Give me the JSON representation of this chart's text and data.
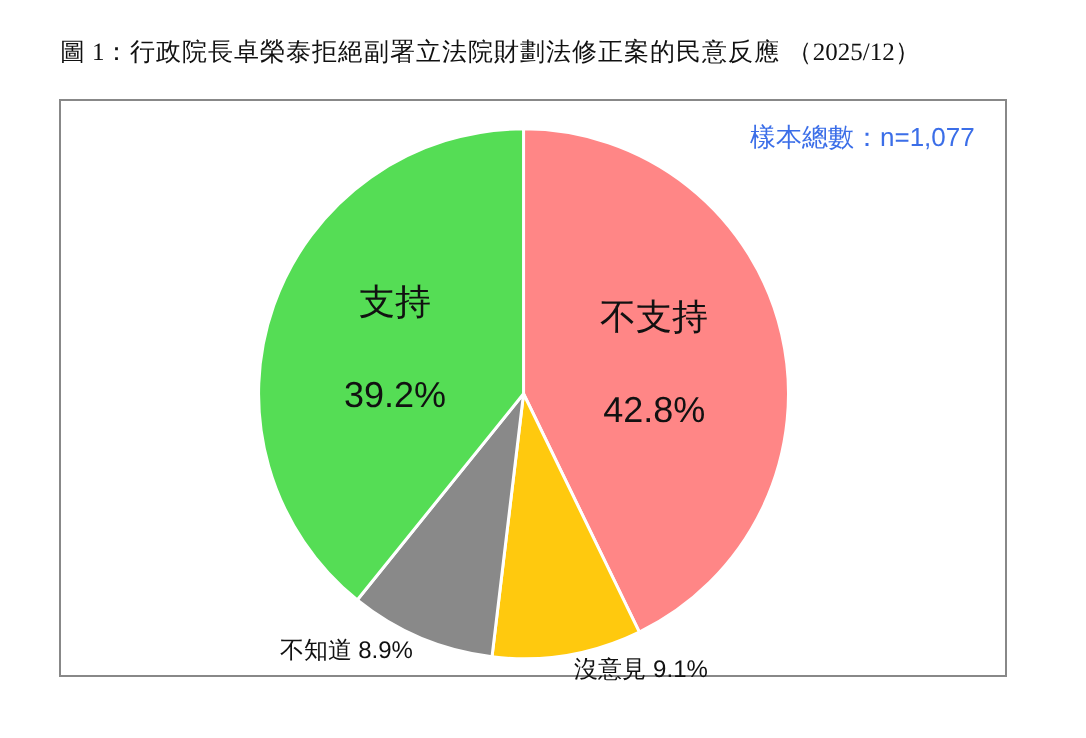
{
  "chart_data": {
    "type": "pie",
    "title": "圖 1：行政院長卓榮泰拒絕副署立法院財劃法修正案的民意反應 （2025/12）",
    "categories": [
      "不支持",
      "沒意見",
      "不知道",
      "支持"
    ],
    "values": [
      42.8,
      9.1,
      8.9,
      39.2
    ],
    "colors": [
      "#ff8686",
      "#ffc90e",
      "#898989",
      "#55dd55"
    ],
    "value_labels": [
      "42.8%",
      "9.1%",
      "8.9%",
      "39.2%"
    ],
    "annotations": [
      "樣本總數：n=1,077"
    ],
    "legend": false
  }
}
